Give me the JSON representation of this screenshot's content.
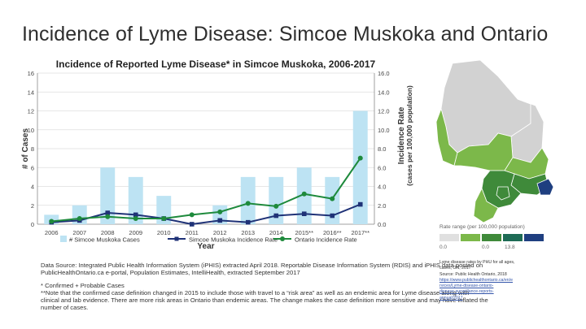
{
  "slide": {
    "title": "Incidence of Lyme Disease: Simcoe Muskoka and Ontario"
  },
  "chart_data": {
    "type": "bar",
    "title": "Incidence of Reported Lyme Disease* in Simcoe Muskoka, 2006-2017",
    "xlabel": "Year",
    "ylabel": "# of Cases",
    "y2label_line1": "Incidence Rate",
    "y2label_line2": "(cases per 100,000 population)",
    "categories": [
      "2006",
      "2007",
      "2008",
      "2009",
      "2010",
      "2011",
      "2012",
      "2013",
      "2014",
      "2015**",
      "2016**",
      "2017**"
    ],
    "ylim": [
      0,
      16
    ],
    "y2lim": [
      0,
      16
    ],
    "yticks": [
      "0",
      "2",
      "4",
      "6",
      "8",
      "10",
      "12",
      "14",
      "16"
    ],
    "y2ticks": [
      "0.0",
      "2.0",
      "4.0",
      "6.0",
      "8.0",
      "10.0",
      "12.0",
      "14.0",
      "16.0"
    ],
    "grid": true,
    "legend_position": "bottom",
    "series": [
      {
        "name": "# Simcoe Muskoka Cases",
        "kind": "bar",
        "axis": "left",
        "color": "#bde3f3",
        "values": [
          1,
          2,
          6,
          5,
          3,
          0,
          2,
          5,
          5,
          6,
          5,
          12
        ]
      },
      {
        "name": "Simcoe Muskoka Incidence Rate",
        "kind": "line",
        "axis": "right",
        "color": "#1f3277",
        "values": [
          0.2,
          0.4,
          1.2,
          1.0,
          0.6,
          0.0,
          0.4,
          0.2,
          0.9,
          1.1,
          0.9,
          2.1
        ]
      },
      {
        "name": "Ontario Incidence Rate",
        "kind": "line",
        "axis": "right",
        "color": "#1e8a3c",
        "values": [
          0.3,
          0.6,
          0.8,
          0.6,
          0.6,
          1.0,
          1.3,
          2.2,
          1.9,
          3.2,
          2.7,
          7.0
        ]
      }
    ]
  },
  "notes": {
    "line1": "Data Source: Integrated Public Health Information System (iPHIS) extracted April 2018. Reportable Disease Information System (RDIS) and iPHIS data posted on",
    "line2": "PublicHealthOntario.ca e-portal, Population Estimates, IntelliHealth, extracted September 2017",
    "line3": "* Confirmed + Probable Cases",
    "line4": "**Note that the confirmed case definition changed in 2015 to include those with travel to a “risk area” as well as an endemic area for Lyme disease along with",
    "line5": "clinical and lab evidence. There are more risk areas in Ontario than endemic areas. The change makes the case definition more sensitive and may have inflated the",
    "line6": "number of cases."
  },
  "map": {
    "legend_title": "Rate range (per 100,000 population)",
    "legend_labels": [
      "0.0",
      "0.0",
      "13.8"
    ],
    "legend_colors": [
      "#e0e0e0",
      "#7cb84a",
      "#3f8a3a",
      "#1e6b55",
      "#1f3f80"
    ],
    "region_colors": {
      "none": "#d2d2d2",
      "low": "#7cb84a",
      "mid": "#3f8a3a",
      "high": "#1f3f80"
    },
    "caption_lines": [
      "Lyme disease rates by PHU for all ages,",
      "cases, ON, 2017",
      "Source: Public Health Ontario, 2018",
      "https://www.publichealthontario.ca/en/e",
      "rvices/Lyme-disease-ontario-",
      "disease-surveillance-reports-",
      "annual/2017"
    ]
  }
}
